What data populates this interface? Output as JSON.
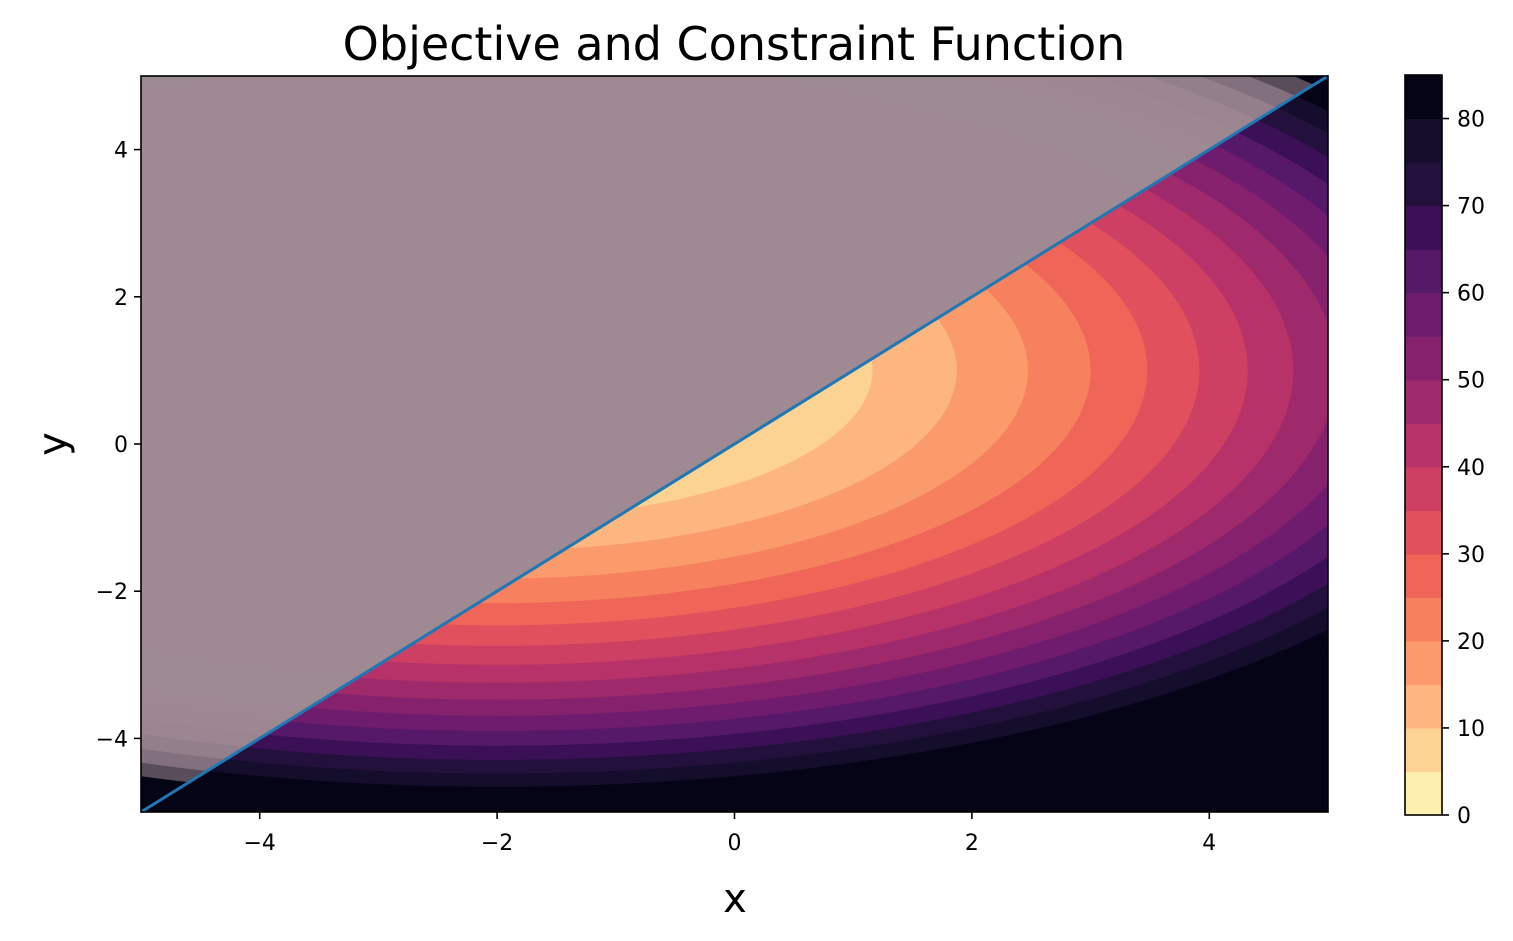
{
  "chart_data": {
    "type": "contour",
    "title": "Objective and Constraint Function",
    "xlabel": "x",
    "ylabel": "y",
    "xlim": [
      -5,
      5
    ],
    "ylim": [
      -5,
      5
    ],
    "xticks": [
      -4,
      -2,
      0,
      2,
      4
    ],
    "yticks": [
      -4,
      -2,
      0,
      2,
      4
    ],
    "xtick_labels": [
      "−4",
      "−2",
      "0",
      "2",
      "4"
    ],
    "ytick_labels": [
      "−4",
      "−2",
      "0",
      "2",
      "4"
    ],
    "colormap": "magma_r",
    "levels": [
      0,
      5,
      10,
      15,
      20,
      25,
      30,
      35,
      40,
      45,
      50,
      55,
      60,
      65,
      70,
      75,
      80,
      85
    ],
    "level_colors": [
      "#fcefb0",
      "#fdd394",
      "#fdb67f",
      "#fb9a6b",
      "#f7805e",
      "#ef6658",
      "#e1505d",
      "#cd3f63",
      "#b73268",
      "#9e2a6b",
      "#86226d",
      "#6f1c6f",
      "#561869",
      "#3c1057",
      "#24103c",
      "#140d2b",
      "#050416"
    ],
    "colorbar_ticks": [
      0,
      10,
      20,
      30,
      40,
      50,
      60,
      70,
      80
    ],
    "colorbar_tick_labels": [
      "0",
      "10",
      "20",
      "30",
      "40",
      "50",
      "60",
      "70",
      "80"
    ],
    "objective": {
      "center": [
        -2,
        1
      ],
      "x_scale": 1,
      "y_scale": 2.5
    },
    "constraint": {
      "line": {
        "x": [
          -5,
          5
        ],
        "y": [
          -5,
          5
        ]
      },
      "line_color": "#1f77b4",
      "shaded_region": "y > x",
      "shade_color": "#9e8a93"
    }
  }
}
